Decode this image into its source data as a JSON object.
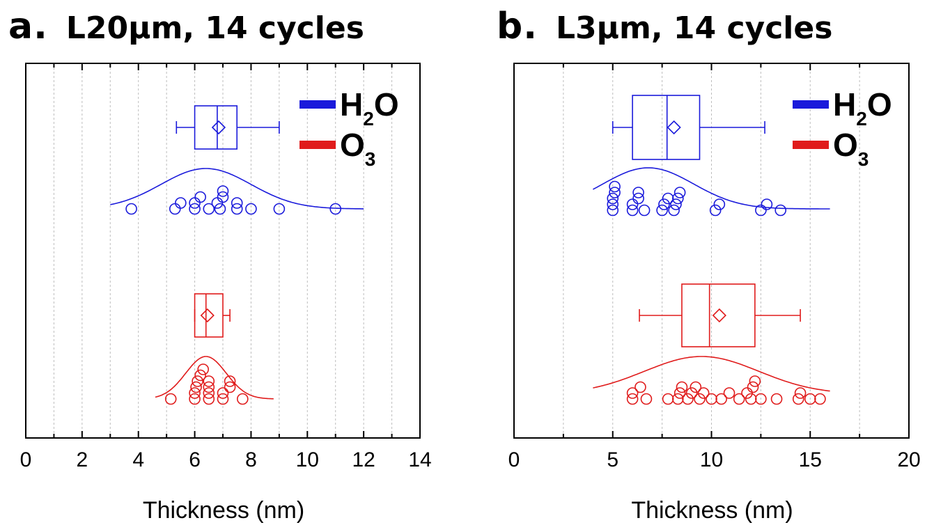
{
  "chart_data": [
    {
      "type": "box-scatter",
      "panel_label": "a.",
      "title": "L20μm, 14 cycles",
      "xlabel": "Thickness (nm)",
      "ylabel": "",
      "xlim": [
        0,
        14
      ],
      "xticks": [
        0,
        2,
        4,
        6,
        8,
        10,
        12,
        14
      ],
      "grid": "vertical-dotted",
      "legend_position": "top-right",
      "series": [
        {
          "name": "H2O",
          "color": "#1a1adb",
          "box": {
            "whisker_low": 5.35,
            "q1": 6.0,
            "median": 6.8,
            "mean": 6.85,
            "q3": 7.5,
            "whisker_high": 9.0
          },
          "points": [
            3.75,
            5.3,
            5.5,
            6.0,
            6.0,
            6.2,
            6.5,
            6.8,
            6.9,
            7.0,
            7.0,
            7.5,
            7.5,
            8.0,
            9.0,
            11.0
          ],
          "normal_curve": {
            "mean": 6.4,
            "sd": 1.6,
            "xrange": [
              3.0,
              12.0
            ]
          }
        },
        {
          "name": "O3",
          "color": "#e01b1b",
          "box": {
            "whisker_low": 6.0,
            "q1": 6.0,
            "median": 6.4,
            "mean": 6.45,
            "q3": 7.0,
            "whisker_high": 7.25
          },
          "points": [
            5.15,
            6.0,
            6.0,
            6.05,
            6.1,
            6.2,
            6.3,
            6.5,
            6.5,
            6.5,
            6.5,
            7.0,
            7.0,
            7.25,
            7.25,
            7.7
          ],
          "normal_curve": {
            "mean": 6.4,
            "sd": 0.72,
            "xrange": [
              4.6,
              8.8
            ]
          }
        }
      ]
    },
    {
      "type": "box-scatter",
      "panel_label": "b.",
      "title": "L3μm, 14 cycles",
      "xlabel": "Thickness (nm)",
      "ylabel": "",
      "xlim": [
        0,
        20
      ],
      "xticks": [
        0,
        5,
        10,
        15,
        20
      ],
      "grid": "vertical-dotted",
      "legend_position": "top-right",
      "series": [
        {
          "name": "H2O",
          "color": "#1a1adb",
          "box": {
            "whisker_low": 5.0,
            "q1": 6.0,
            "median": 7.75,
            "mean": 8.1,
            "q3": 9.4,
            "whisker_high": 12.7
          },
          "points": [
            5.0,
            5.0,
            5.0,
            5.1,
            5.1,
            6.0,
            6.0,
            6.3,
            6.3,
            6.6,
            7.5,
            7.6,
            7.8,
            8.1,
            8.2,
            8.3,
            8.4,
            10.2,
            10.4,
            12.5,
            12.8,
            13.5
          ],
          "normal_curve": {
            "mean": 6.8,
            "sd": 2.3,
            "xrange": [
              4.0,
              16.0
            ]
          }
        },
        {
          "name": "O3",
          "color": "#e01b1b",
          "box": {
            "whisker_low": 6.35,
            "q1": 8.5,
            "median": 9.9,
            "mean": 10.4,
            "q3": 12.2,
            "whisker_high": 14.5
          },
          "points": [
            6.0,
            6.0,
            6.4,
            6.7,
            7.8,
            8.3,
            8.4,
            8.5,
            8.8,
            9.0,
            9.2,
            9.4,
            9.6,
            10.0,
            10.5,
            10.9,
            11.4,
            11.8,
            12.0,
            12.1,
            12.2,
            12.5,
            13.3,
            14.4,
            14.5,
            15.0,
            15.5
          ],
          "normal_curve": {
            "mean": 9.5,
            "sd": 2.9,
            "xrange": [
              4.0,
              16.0
            ]
          }
        }
      ]
    }
  ]
}
